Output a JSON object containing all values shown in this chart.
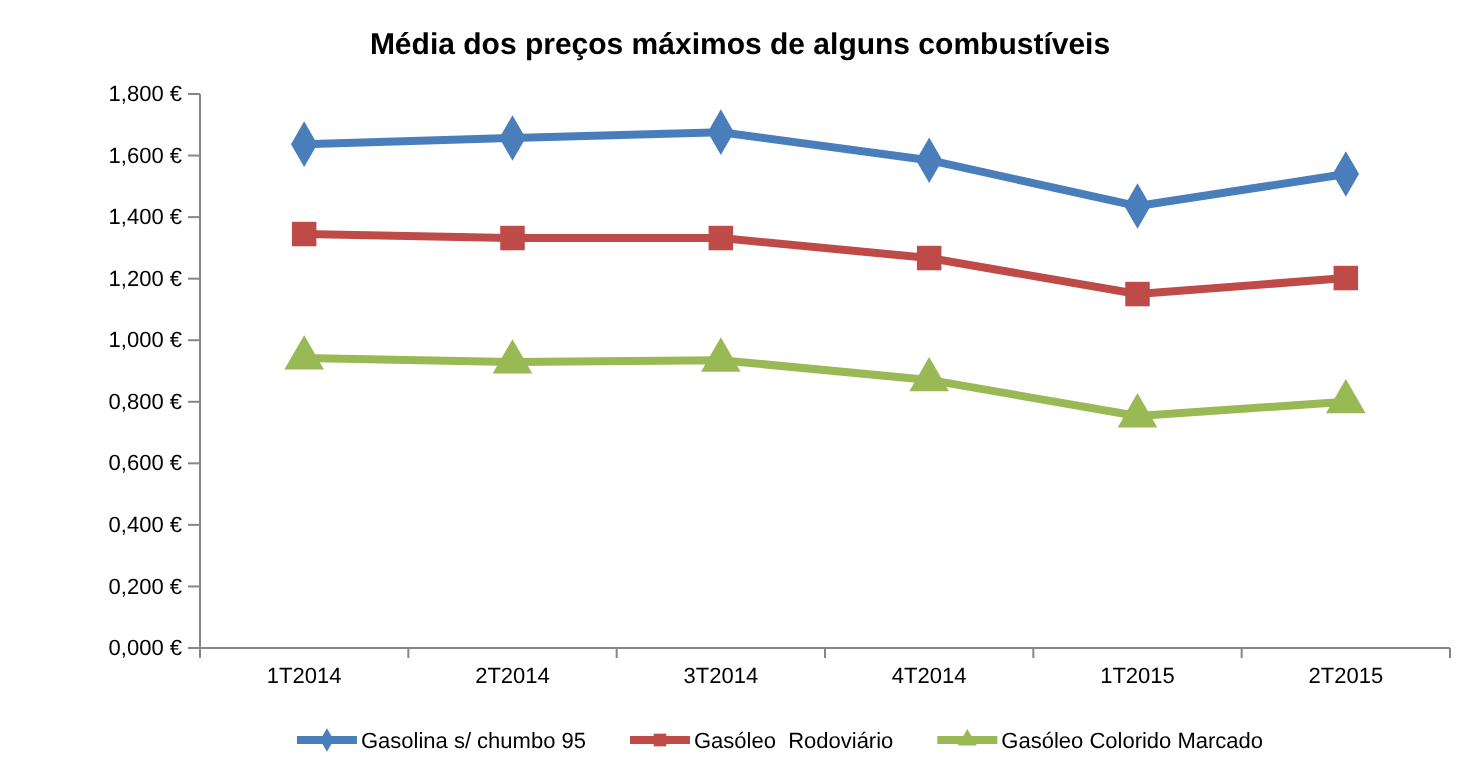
{
  "chart_data": {
    "type": "line",
    "title": "Média dos preços máximos de alguns combustíveis",
    "categories": [
      "1T2014",
      "2T2014",
      "3T2014",
      "4T2014",
      "1T2015",
      "2T2015"
    ],
    "series": [
      {
        "name": "Gasolina s/ chumbo 95",
        "color": "#4a7ebb",
        "marker": "diamond",
        "values": [
          1.637,
          1.657,
          1.676,
          1.585,
          1.436,
          1.54
        ]
      },
      {
        "name": "Gasóleo  Rodoviário",
        "color": "#be4b48",
        "marker": "square",
        "values": [
          1.345,
          1.332,
          1.332,
          1.267,
          1.15,
          1.202
        ]
      },
      {
        "name": "Gasóleo Colorido Marcado",
        "color": "#98b954",
        "marker": "triangle",
        "values": [
          0.942,
          0.929,
          0.935,
          0.871,
          0.754,
          0.8
        ]
      }
    ],
    "ylim": [
      0,
      1.8
    ],
    "yticks": [
      {
        "value": 0,
        "label": "0,000 €"
      },
      {
        "value": 0.2,
        "label": "0,200 €"
      },
      {
        "value": 0.4,
        "label": "0,400 €"
      },
      {
        "value": 0.6,
        "label": "0,600 €"
      },
      {
        "value": 0.8,
        "label": "0,800 €"
      },
      {
        "value": 1,
        "label": "1,000 €"
      },
      {
        "value": 1.2,
        "label": "1,200 €"
      },
      {
        "value": 1.4,
        "label": "1,400 €"
      },
      {
        "value": 1.6,
        "label": "1,600 €"
      },
      {
        "value": 1.8,
        "label": "1,800 €"
      }
    ],
    "grid": false,
    "legend": "bottom",
    "line_style": "solid"
  }
}
